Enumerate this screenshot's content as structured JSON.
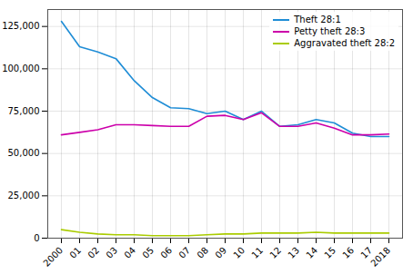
{
  "chart_data": {
    "type": "line",
    "categories": [
      "2000",
      "01",
      "02",
      "03",
      "04",
      "05",
      "06",
      "07",
      "08",
      "09",
      "10",
      "11",
      "12",
      "13",
      "14",
      "15",
      "16",
      "17",
      "2018"
    ],
    "series": [
      {
        "name": "Theft 28:1",
        "color": "#1f8dd6",
        "values": [
          128000,
          113000,
          110000,
          106000,
          93000,
          83000,
          77000,
          76500,
          73500,
          75000,
          70000,
          75000,
          66000,
          67000,
          70000,
          68000,
          62000,
          60000,
          60000
        ]
      },
      {
        "name": "Petty theft 28:3",
        "color": "#cc00aa",
        "values": [
          61000,
          62500,
          64000,
          67000,
          67000,
          66500,
          66000,
          66000,
          72000,
          72500,
          70000,
          74000,
          66000,
          66000,
          68000,
          65000,
          61000,
          61000,
          61500
        ]
      },
      {
        "name": "Aggravated theft 28:2",
        "color": "#aacc00",
        "values": [
          5000,
          3500,
          2500,
          2000,
          2000,
          1500,
          1500,
          1500,
          2000,
          2500,
          2500,
          3000,
          3000,
          3000,
          3500,
          3000,
          3000,
          3000,
          3000
        ]
      }
    ],
    "ylim": [
      0,
      135000
    ],
    "yticks": [
      0,
      {
        "value": 25000,
        "label": "25,000"
      },
      {
        "value": 50000,
        "label": "50,000"
      },
      {
        "value": 75000,
        "label": "75,000"
      },
      {
        "value": 100000,
        "label": "100,000"
      },
      {
        "value": 125000,
        "label": "125,000"
      }
    ],
    "grid": true,
    "legend": "upper right"
  }
}
